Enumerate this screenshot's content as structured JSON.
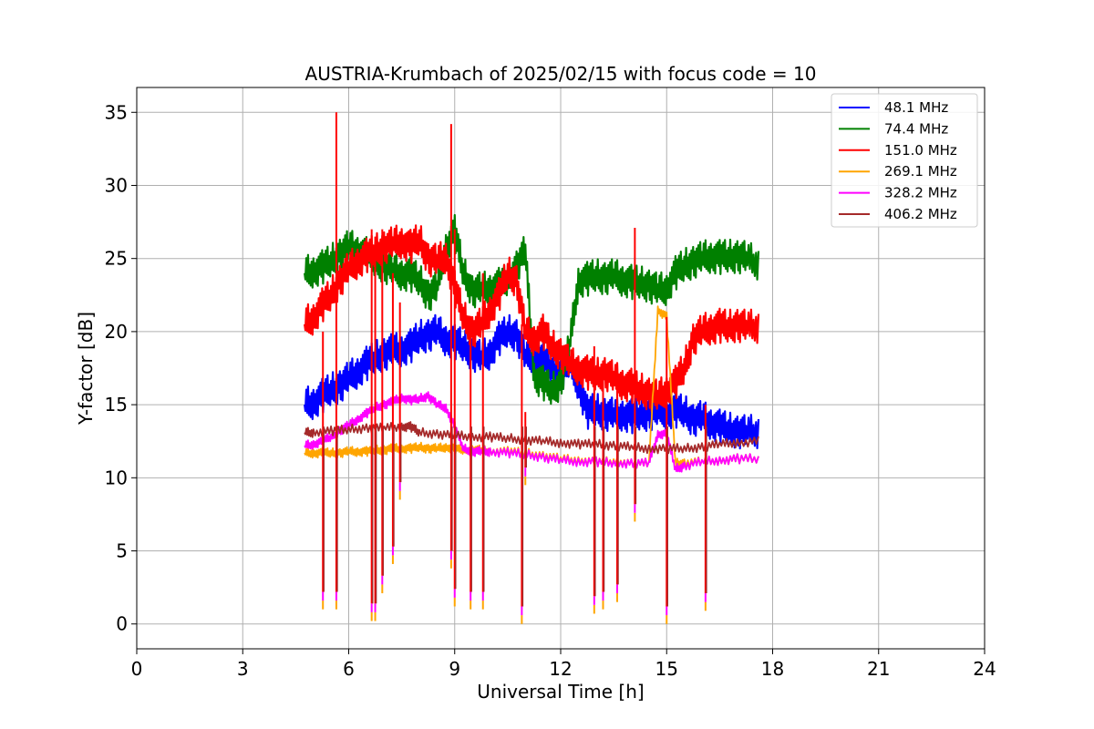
{
  "chart_data": {
    "type": "line",
    "title": "AUSTRIA-Krumbach of 2025/02/15 with focus code = 10",
    "xlabel": "Universal Time [h]",
    "ylabel": "Y-factor [dB]",
    "xlim": [
      0,
      24
    ],
    "ylim": [
      -1.7,
      36.7
    ],
    "xticks": [
      0,
      3,
      6,
      9,
      12,
      15,
      18,
      21,
      24
    ],
    "yticks": [
      0,
      5,
      10,
      15,
      20,
      25,
      30,
      35
    ],
    "grid": true,
    "legend_position": "top-right",
    "series": [
      {
        "name": "48.1 MHz",
        "color": "#0000ff",
        "x": [
          4.75,
          5.0,
          5.25,
          5.5,
          5.75,
          6.0,
          6.25,
          6.5,
          6.75,
          7.0,
          7.25,
          7.5,
          7.75,
          8.0,
          8.25,
          8.5,
          8.75,
          9.0,
          9.25,
          9.5,
          9.75,
          10.0,
          10.25,
          10.5,
          10.75,
          11.0,
          11.25,
          11.5,
          11.75,
          12.0,
          12.25,
          12.5,
          12.75,
          13.0,
          13.25,
          13.5,
          13.75,
          14.0,
          14.25,
          14.5,
          14.75,
          15.0,
          15.25,
          15.5,
          15.75,
          16.0,
          16.25,
          16.5,
          16.75,
          17.0,
          17.25,
          17.6
        ],
        "y": [
          15.0,
          15.2,
          15.6,
          16.0,
          16.3,
          16.8,
          17.3,
          17.8,
          18.2,
          18.5,
          18.7,
          18.8,
          19.0,
          19.6,
          19.8,
          20.0,
          19.5,
          19.3,
          19.0,
          18.5,
          18.2,
          18.6,
          19.5,
          20.0,
          19.8,
          18.3,
          18.2,
          18.0,
          17.5,
          17.0,
          17.8,
          16.5,
          14.5,
          14.6,
          14.4,
          14.3,
          14.4,
          14.2,
          14.3,
          14.4,
          14.5,
          14.5,
          14.6,
          14.5,
          14.0,
          14.1,
          13.8,
          13.5,
          13.3,
          13.2,
          13.1,
          13.2
        ]
      },
      {
        "name": "74.4 MHz",
        "color": "#008000",
        "x": [
          4.75,
          5.0,
          5.25,
          5.5,
          5.75,
          6.0,
          6.25,
          6.5,
          6.75,
          7.0,
          7.25,
          7.5,
          7.75,
          8.0,
          8.25,
          8.5,
          8.75,
          9.0,
          9.25,
          9.5,
          9.75,
          10.0,
          10.25,
          10.5,
          10.75,
          11.0,
          11.25,
          11.5,
          11.75,
          12.0,
          12.25,
          12.5,
          12.75,
          13.0,
          13.25,
          13.5,
          13.75,
          14.0,
          14.25,
          14.5,
          14.75,
          15.0,
          15.25,
          15.5,
          15.75,
          16.0,
          16.25,
          16.5,
          16.75,
          17.0,
          17.25,
          17.6
        ],
        "y": [
          24.0,
          24.2,
          24.4,
          24.8,
          25.3,
          25.8,
          25.6,
          25.3,
          24.8,
          24.5,
          24.2,
          24.0,
          23.9,
          23.5,
          22.5,
          23.0,
          25.8,
          26.8,
          24.0,
          22.8,
          22.9,
          23.0,
          23.2,
          23.5,
          24.5,
          25.5,
          17.0,
          16.5,
          16.0,
          16.5,
          19.0,
          23.5,
          23.6,
          23.8,
          23.7,
          23.8,
          23.6,
          23.4,
          23.3,
          23.2,
          22.8,
          23.0,
          24.0,
          24.5,
          24.8,
          25.0,
          25.2,
          25.1,
          25.1,
          25.2,
          25.0,
          24.7
        ]
      },
      {
        "name": "151.0 MHz",
        "color": "#ff0000",
        "x": [
          4.75,
          5.0,
          5.25,
          5.5,
          5.75,
          6.0,
          6.25,
          6.5,
          6.75,
          7.0,
          7.25,
          7.5,
          7.75,
          8.0,
          8.25,
          8.5,
          8.75,
          9.0,
          9.25,
          9.5,
          9.75,
          10.0,
          10.25,
          10.5,
          10.75,
          11.0,
          11.25,
          11.5,
          11.75,
          12.0,
          12.25,
          12.5,
          12.75,
          13.0,
          13.25,
          13.5,
          13.75,
          14.0,
          14.25,
          14.5,
          14.75,
          15.0,
          15.25,
          15.5,
          15.75,
          16.0,
          16.25,
          16.5,
          16.75,
          17.0,
          17.25,
          17.6
        ],
        "y": [
          20.5,
          21.0,
          21.8,
          22.5,
          23.5,
          24.3,
          24.8,
          25.2,
          25.5,
          25.8,
          26.0,
          26.2,
          25.8,
          26.3,
          25.0,
          24.8,
          25.2,
          23.0,
          21.0,
          20.0,
          20.5,
          21.5,
          22.5,
          24.0,
          23.5,
          20.0,
          19.5,
          20.0,
          19.0,
          18.5,
          17.8,
          17.5,
          17.2,
          17.0,
          17.2,
          16.8,
          16.5,
          16.3,
          16.0,
          15.8,
          15.5,
          16.0,
          16.5,
          17.5,
          19.5,
          20.0,
          20.3,
          20.4,
          20.3,
          20.5,
          20.3,
          20.4
        ]
      },
      {
        "name": "269.1 MHz",
        "color": "#ffa500",
        "x": [
          4.75,
          5.0,
          5.25,
          5.5,
          5.75,
          6.0,
          6.25,
          6.5,
          6.75,
          7.0,
          7.25,
          7.5,
          7.75,
          8.0,
          8.25,
          8.5,
          8.75,
          9.0,
          9.25,
          9.5,
          9.75,
          10.0,
          10.5,
          11.0,
          11.5,
          12.0,
          12.5,
          13.0,
          13.5,
          14.0,
          14.5,
          14.75,
          15.0,
          15.25,
          15.5,
          16.0,
          16.5,
          17.0,
          17.6
        ],
        "y": [
          11.7,
          11.7,
          11.7,
          11.7,
          11.7,
          11.8,
          11.8,
          11.8,
          11.9,
          11.9,
          12.0,
          12.0,
          12.0,
          12.1,
          12.0,
          12.0,
          12.1,
          12.0,
          11.9,
          11.9,
          11.9,
          11.8,
          11.8,
          11.7,
          11.5,
          11.3,
          11.2,
          11.1,
          11.1,
          11.0,
          11.0,
          21.5,
          21.0,
          11.0,
          11.0,
          11.1,
          11.2,
          11.3,
          11.3
        ]
      },
      {
        "name": "328.2 MHz",
        "color": "#ff00ff",
        "x": [
          4.75,
          5.0,
          5.25,
          5.5,
          5.75,
          6.0,
          6.25,
          6.5,
          6.75,
          7.0,
          7.25,
          7.5,
          7.75,
          8.0,
          8.25,
          8.5,
          8.75,
          9.0,
          9.25,
          9.5,
          9.75,
          10.0,
          10.5,
          11.0,
          11.5,
          12.0,
          12.5,
          13.0,
          13.5,
          14.0,
          14.5,
          14.75,
          15.0,
          15.25,
          15.5,
          16.0,
          16.5,
          17.0,
          17.6
        ],
        "y": [
          12.2,
          12.3,
          12.5,
          12.8,
          13.2,
          13.6,
          14.0,
          14.4,
          14.8,
          15.0,
          15.2,
          15.5,
          15.3,
          15.4,
          15.6,
          15.0,
          14.8,
          13.5,
          12.0,
          11.8,
          11.8,
          11.8,
          11.7,
          11.6,
          11.4,
          11.2,
          11.1,
          11.1,
          11.0,
          11.0,
          11.0,
          13.0,
          13.0,
          10.6,
          10.8,
          11.1,
          11.2,
          11.3,
          11.3
        ]
      },
      {
        "name": "406.2 MHz",
        "color": "#a52a2a",
        "x": [
          4.75,
          5.0,
          5.5,
          6.0,
          6.5,
          7.0,
          7.5,
          7.75,
          8.0,
          8.5,
          9.0,
          9.5,
          10.0,
          10.5,
          11.0,
          11.5,
          12.0,
          12.5,
          13.0,
          13.5,
          14.0,
          14.5,
          15.0,
          15.5,
          16.0,
          16.5,
          17.0,
          17.6
        ],
        "y": [
          13.1,
          13.1,
          13.2,
          13.3,
          13.4,
          13.4,
          13.5,
          13.5,
          13.1,
          13.0,
          12.9,
          12.8,
          12.8,
          12.7,
          12.6,
          12.5,
          12.4,
          12.3,
          12.3,
          12.2,
          12.1,
          12.0,
          12.0,
          12.0,
          12.1,
          12.3,
          12.4,
          12.5
        ]
      }
    ],
    "spikes": [
      {
        "x": 5.27,
        "y_from": 1.0,
        "y_to": 20.0
      },
      {
        "x": 5.65,
        "y_from": 1.0,
        "y_to": 35.0
      },
      {
        "x": 6.65,
        "y_from": 0.2,
        "y_to": 27.0
      },
      {
        "x": 6.75,
        "y_from": 0.2,
        "y_to": 26.5
      },
      {
        "x": 6.95,
        "y_from": 2.1,
        "y_to": 27.0
      },
      {
        "x": 7.25,
        "y_from": 4.1,
        "y_to": 24.0
      },
      {
        "x": 7.45,
        "y_from": 8.5,
        "y_to": 22.0
      },
      {
        "x": 8.9,
        "y_from": 3.8,
        "y_to": 34.2
      },
      {
        "x": 9.0,
        "y_from": 1.2,
        "y_to": 27.0
      },
      {
        "x": 9.45,
        "y_from": 1.0,
        "y_to": 20.0
      },
      {
        "x": 9.8,
        "y_from": 1.0,
        "y_to": 24.0
      },
      {
        "x": 10.9,
        "y_from": 0.0,
        "y_to": 20.5
      },
      {
        "x": 11.0,
        "y_from": 9.5,
        "y_to": 14.5
      },
      {
        "x": 12.95,
        "y_from": 0.7,
        "y_to": 19.0
      },
      {
        "x": 13.2,
        "y_from": 1.0,
        "y_to": 18.0
      },
      {
        "x": 13.6,
        "y_from": 1.5,
        "y_to": 17.5
      },
      {
        "x": 14.1,
        "y_from": 7.0,
        "y_to": 27.1
      },
      {
        "x": 15.0,
        "y_from": 0.0,
        "y_to": 21.0
      },
      {
        "x": 16.1,
        "y_from": 0.9,
        "y_to": 15.0
      }
    ]
  }
}
